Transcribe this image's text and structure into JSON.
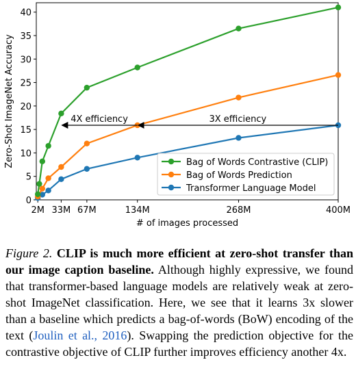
{
  "chart_data": {
    "type": "line",
    "xlabel": "# of images processed",
    "ylabel": "Zero-Shot ImageNet Accuracy",
    "xlim": [
      0,
      400
    ],
    "ylim": [
      0,
      42
    ],
    "x_ticks": [
      2,
      33,
      67,
      134,
      268,
      400
    ],
    "x_tick_labels": [
      "2M",
      "33M",
      "67M",
      "134M",
      "268M",
      "400M"
    ],
    "y_ticks": [
      0,
      5,
      10,
      15,
      20,
      25,
      30,
      35,
      40
    ],
    "grid": false,
    "legend_position": "lower right",
    "series": [
      {
        "name": "Bag of Words Contrastive (CLIP)",
        "color": "#2ca02c",
        "x": [
          2,
          4,
          8,
          16,
          33,
          67,
          134,
          268,
          400
        ],
        "y": [
          1.2,
          3.4,
          8.2,
          11.5,
          18.4,
          23.9,
          28.2,
          36.5,
          41.0
        ]
      },
      {
        "name": "Bag of Words Prediction",
        "color": "#ff7f0e",
        "x": [
          2,
          8,
          16,
          33,
          67,
          134,
          268,
          400
        ],
        "y": [
          0.7,
          2.4,
          4.6,
          7.0,
          12.0,
          15.9,
          21.8,
          26.6
        ]
      },
      {
        "name": "Transformer Language Model",
        "color": "#1f77b4",
        "x": [
          2,
          8,
          16,
          33,
          67,
          134,
          268,
          400
        ],
        "y": [
          0.4,
          1.1,
          2.0,
          4.4,
          6.6,
          9.0,
          13.2,
          15.9
        ]
      }
    ],
    "annotations": [
      {
        "text": "4X efficiency",
        "from_x": 134,
        "to_x": 33,
        "y": 15.9
      },
      {
        "text": "3X efficiency",
        "from_x": 400,
        "to_x": 134,
        "y": 15.9
      }
    ]
  },
  "caption": {
    "figure_label": "Figure 2.",
    "bold_text": "CLIP is much more efficient at zero-shot transfer than our image caption baseline.",
    "text_before_citation": "Although highly expressive, we found that transformer-based language models are relatively weak at zero-shot ImageNet classification. Here, we see that it learns 3x slower than a baseline which predicts a bag-of-words (BoW) encoding of the text",
    "citation": "Joulin et al., 2016",
    "text_after_citation": "Swapping the prediction objective for the contrastive objective of CLIP further improves efficiency another 4x."
  }
}
